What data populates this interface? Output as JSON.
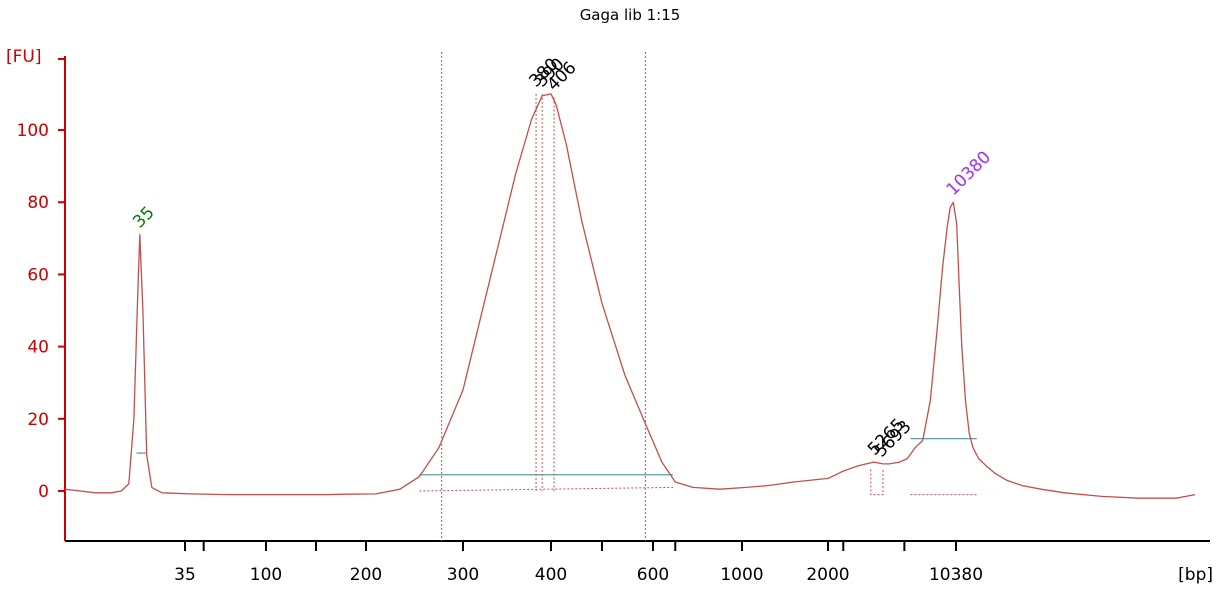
{
  "chart_data": {
    "type": "line",
    "title": "Gaga lib 1:15",
    "ylabel": "[FU]",
    "xlabel": "[bp]",
    "ylim": [
      -13,
      122
    ],
    "yticks": [
      0,
      20,
      40,
      60,
      80,
      100
    ],
    "xticks": [
      {
        "label": "35",
        "value": 35
      },
      {
        "label": "",
        "value": 50
      },
      {
        "label": "100",
        "value": 100
      },
      {
        "label": "",
        "value": 150
      },
      {
        "label": "200",
        "value": 200
      },
      {
        "label": "300",
        "value": 300
      },
      {
        "label": "400",
        "value": 400
      },
      {
        "label": "",
        "value": 500
      },
      {
        "label": "600",
        "value": 600
      },
      {
        "label": "",
        "value": 700
      },
      {
        "label": "1000",
        "value": 1000
      },
      {
        "label": "2000",
        "value": 2000
      },
      {
        "label": "",
        "value": 3000
      },
      {
        "label": "",
        "value": 7000
      },
      {
        "label": "10380",
        "value": 10380
      }
    ],
    "series": [
      {
        "color": "#c0504d",
        "points": [
          [
            -12,
            0.5
          ],
          [
            -6,
            0
          ],
          [
            0,
            -0.5
          ],
          [
            6,
            -0.5
          ],
          [
            10,
            0
          ],
          [
            13,
            2
          ],
          [
            15,
            20
          ],
          [
            16.5,
            55
          ],
          [
            17.3,
            71
          ],
          [
            18.5,
            50
          ],
          [
            20,
            10
          ],
          [
            22,
            1
          ],
          [
            26,
            -0.5
          ],
          [
            40,
            -0.8
          ],
          [
            70,
            -1
          ],
          [
            120,
            -1
          ],
          [
            160,
            -1
          ],
          [
            180,
            -0.9
          ],
          [
            210,
            -0.8
          ],
          [
            235,
            0.5
          ],
          [
            255,
            4
          ],
          [
            275,
            12
          ],
          [
            300,
            28
          ],
          [
            320,
            48
          ],
          [
            340,
            68
          ],
          [
            360,
            88
          ],
          [
            378,
            103
          ],
          [
            390,
            109.5
          ],
          [
            400,
            110
          ],
          [
            410,
            107
          ],
          [
            430,
            96
          ],
          [
            460,
            75
          ],
          [
            500,
            52
          ],
          [
            545,
            32
          ],
          [
            590,
            17
          ],
          [
            640,
            8
          ],
          [
            700,
            2.5
          ],
          [
            780,
            1
          ],
          [
            900,
            0.5
          ],
          [
            1050,
            1
          ],
          [
            1300,
            1.5
          ],
          [
            1600,
            2.5
          ],
          [
            2000,
            3.5
          ],
          [
            2500,
            4.5
          ],
          [
            3000,
            5.5
          ],
          [
            3500,
            6.3
          ],
          [
            4000,
            7
          ],
          [
            4500,
            7.5
          ],
          [
            5000,
            8
          ],
          [
            5600,
            7.5
          ],
          [
            6000,
            7.5
          ],
          [
            6700,
            8
          ],
          [
            7200,
            9
          ],
          [
            7700,
            12
          ],
          [
            8200,
            14
          ],
          [
            8700,
            25
          ],
          [
            9150,
            45
          ],
          [
            9500,
            62
          ],
          [
            9800,
            73
          ],
          [
            10000,
            78.5
          ],
          [
            10200,
            80
          ],
          [
            10450,
            74
          ],
          [
            10700,
            58
          ],
          [
            11000,
            40
          ],
          [
            11400,
            25
          ],
          [
            11800,
            16
          ],
          [
            12200,
            12
          ],
          [
            12800,
            9
          ],
          [
            13600,
            7
          ],
          [
            14500,
            5
          ],
          [
            15800,
            3
          ],
          [
            17500,
            1.5
          ],
          [
            19500,
            0.5
          ],
          [
            22000,
            -0.5
          ],
          [
            26000,
            -1.5
          ],
          [
            30000,
            -2
          ],
          [
            34000,
            -2
          ],
          [
            36000,
            -1
          ]
        ]
      }
    ],
    "peaks": [
      {
        "label": "35",
        "x": 17.3,
        "y": 71,
        "color": "#008000"
      },
      {
        "label": "10380",
        "x": 10200,
        "y": 80,
        "color": "#9933ff"
      },
      {
        "label": "380",
        "x": 383,
        "y": 110,
        "color": "#000000"
      },
      {
        "label": "390",
        "x": 390,
        "y": 110,
        "color": "#000000"
      },
      {
        "label": "406",
        "x": 406,
        "y": 109,
        "color": "#000000"
      },
      {
        "label": "5265",
        "x": 5050,
        "y": 8,
        "color": "#000000"
      },
      {
        "label": "5693",
        "x": 5500,
        "y": 7.5,
        "color": "#000000"
      }
    ],
    "region": {
      "from": 278,
      "to": 585
    },
    "baselines": [
      {
        "from": 255,
        "to": 690,
        "y": 4.5
      },
      {
        "from": 16,
        "to": 20,
        "y": 10.5
      },
      {
        "from": 7400,
        "to": 12600,
        "y": 14.5
      }
    ],
    "peak_boxes": [
      {
        "from": 4800,
        "to": 5600,
        "y": 6
      },
      {
        "from": 7400,
        "to": 12600,
        "y": -1
      }
    ]
  }
}
